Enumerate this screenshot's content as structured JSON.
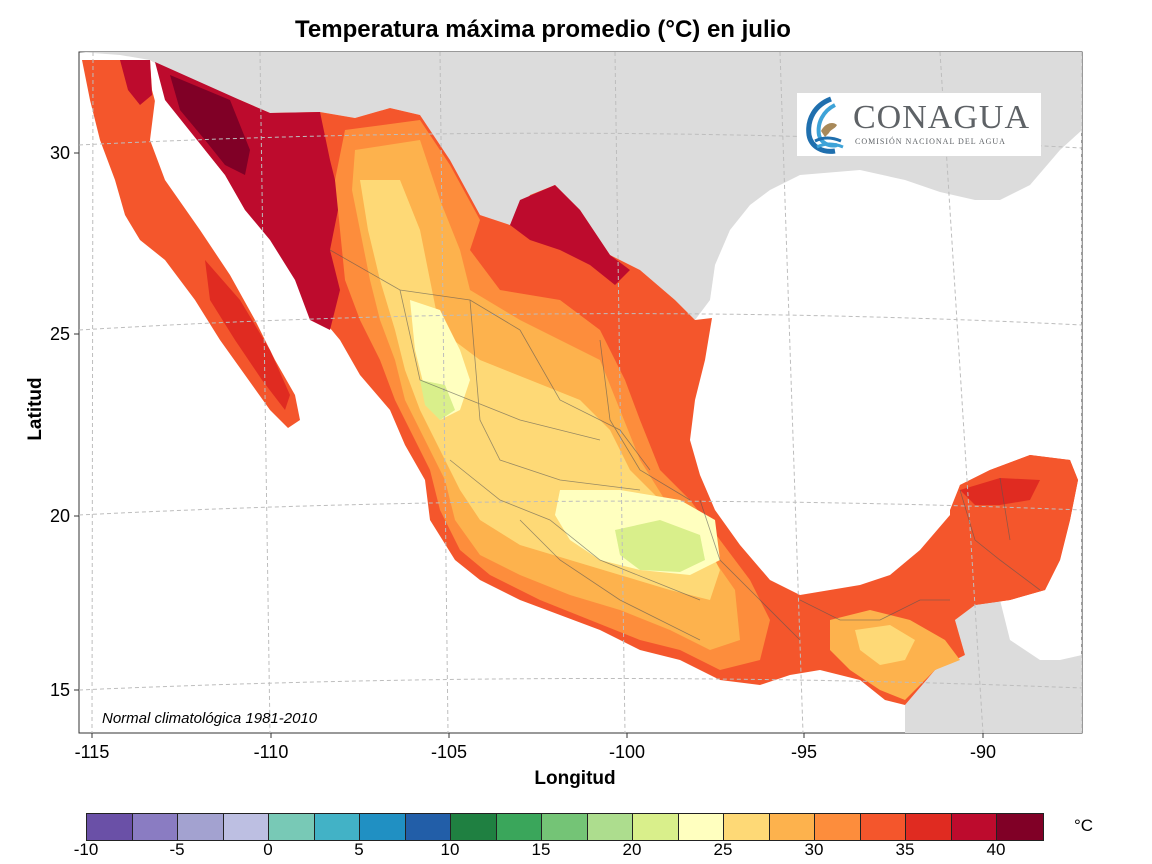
{
  "title": "Temperatura máxima promedio (°C) en julio",
  "axes": {
    "xlabel": "Longitud",
    "ylabel": "Latitud",
    "xticks": [
      "-115",
      "-110",
      "-105",
      "-100",
      "-95",
      "-90"
    ],
    "yticks": [
      "30",
      "25",
      "20",
      "15"
    ]
  },
  "note": "Normal climatológica 1981-2010",
  "logo": {
    "name": "CONAGUA",
    "subtitle": "COMISIÓN NACIONAL DEL AGUA"
  },
  "legend": {
    "unit": "°C",
    "labels": [
      "-10",
      "-5",
      "0",
      "5",
      "10",
      "15",
      "20",
      "25",
      "30",
      "35",
      "40"
    ],
    "colors": [
      "#6a50a7",
      "#8a7cc2",
      "#a3a2d0",
      "#bdbfe2",
      "#78c9b6",
      "#42b2c6",
      "#2090c3",
      "#225ea8",
      "#1f8041",
      "#3aa65b",
      "#74c476",
      "#addd8e",
      "#d9ef8b",
      "#ffffbf",
      "#fed976",
      "#fdb24d",
      "#fd8d3c",
      "#f4562c",
      "#e02b21",
      "#bd0b2d",
      "#800026"
    ]
  },
  "colors": {
    "ocean": "#ffffff",
    "land_outside": "#dcdcdc",
    "grid": "#bdbdbd"
  }
}
